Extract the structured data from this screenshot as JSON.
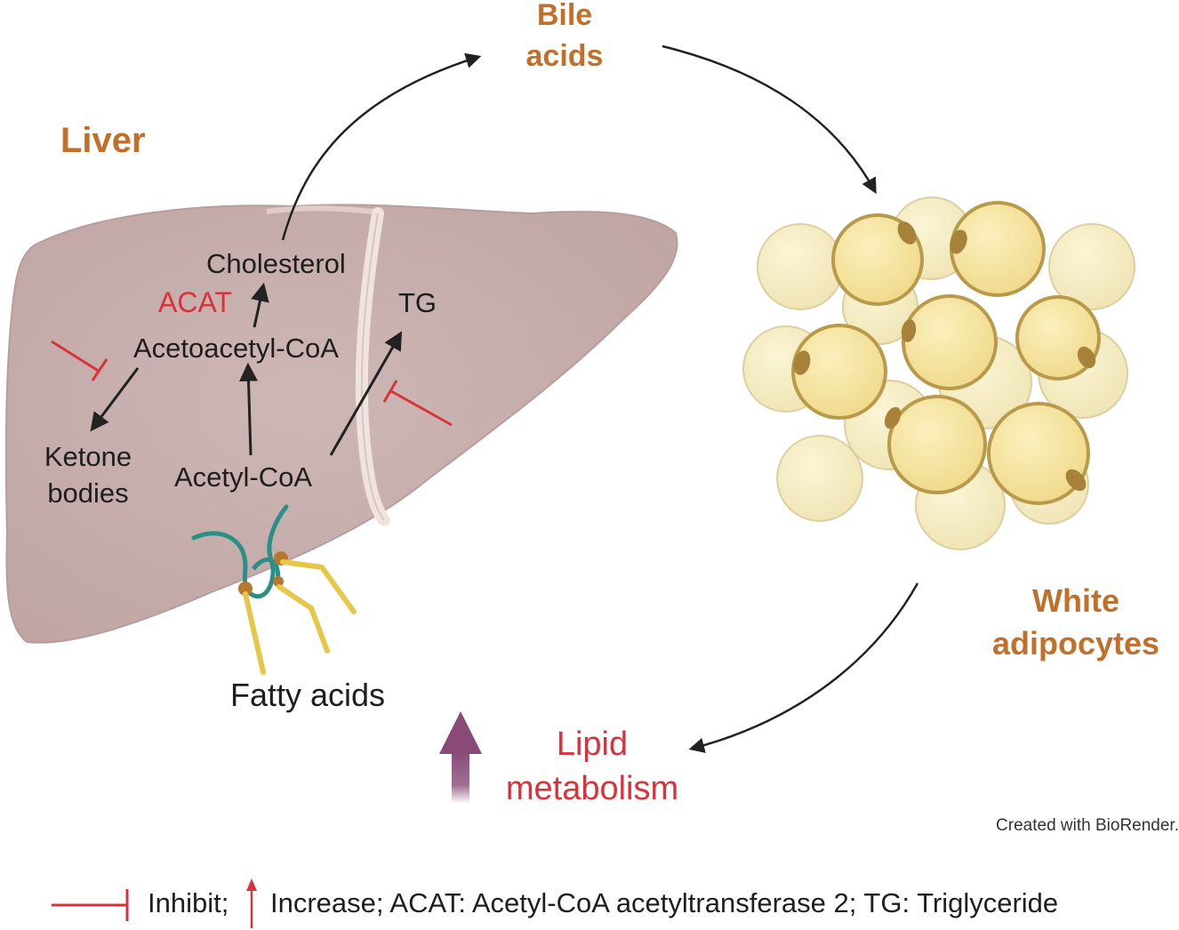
{
  "labels": {
    "liver": "Liver",
    "bile_line1": "Bile",
    "bile_line2": "acids",
    "cholesterol": "Cholesterol",
    "acat": "ACAT",
    "tg": "TG",
    "acetoacetyl": "Acetoacetyl-CoA",
    "ketone_line1": "Ketone",
    "ketone_line2": "bodies",
    "acetyl": "Acetyl-CoA",
    "fatty_acids": "Fatty acids",
    "white_line1": "White",
    "white_line2": "adipocytes",
    "lipid_line1": "Lipid",
    "lipid_line2": "metabolism",
    "credit": "Created with BioRender."
  },
  "legend": {
    "inhibit": "Inhibit;",
    "increase_def": "Increase; ACAT: Acetyl-CoA acetyltransferase  2; TG: Triglyceride"
  },
  "colors": {
    "organ_label": "#c0702a",
    "highlight_red": "#d9323a",
    "liver_fill": "#cbb4b2",
    "adipocyte_fill": "#f3e6a8",
    "adipocyte_outline": "#b89a4a",
    "increase_arrow": "#8a4a78"
  },
  "icons": [
    "liver-illustration",
    "adipocyte-cluster-illustration",
    "fatty-acid-molecule-icon",
    "inhibit-symbol-icon",
    "increase-arrow-icon"
  ]
}
